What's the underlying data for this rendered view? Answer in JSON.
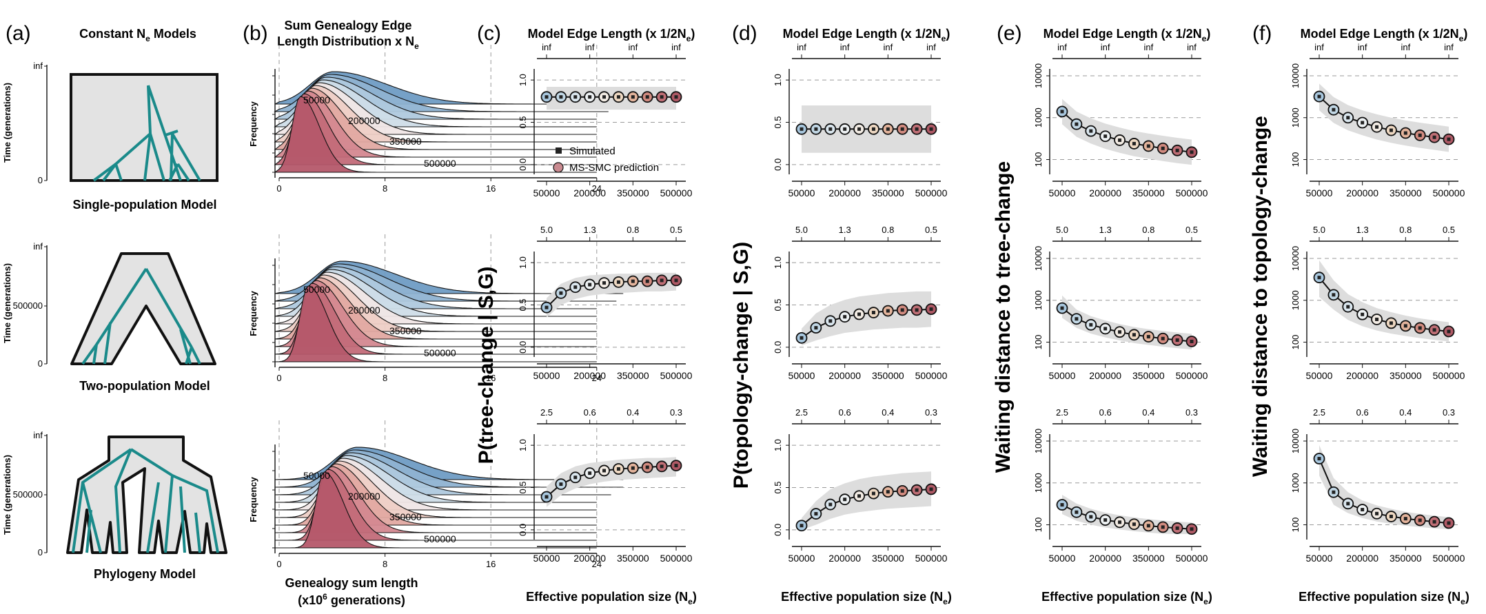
{
  "palette": {
    "teal": "#1a8a8a",
    "shade": "#e3e3e3",
    "band": "#dddddd",
    "blue": "#4a7fb0",
    "red": "#b4545f",
    "dashed": "#999999",
    "ramp": [
      "#a9c8df",
      "#c2d8e6",
      "#dbe7ef",
      "#eef2f4",
      "#f3ece4",
      "#eed8c2",
      "#e4b49c",
      "#d28b80",
      "#c06f76",
      "#b05a66"
    ]
  },
  "panel_labels": [
    "(a)",
    "(b)",
    "(c)",
    "(d)",
    "(e)",
    "(f)"
  ],
  "panel_a": {
    "title": "Constant N",
    "title_sub": "e",
    "title_suffix": " Models",
    "ylabel": "Time (generations)",
    "models": [
      {
        "name": "Single-population Model",
        "ticks": [
          "inf",
          "0"
        ]
      },
      {
        "name": "Two-population Model",
        "ticks": [
          "inf",
          "500000",
          "0"
        ]
      },
      {
        "name": "Phylogeny Model",
        "ticks": [
          "inf",
          "500000",
          "0"
        ]
      }
    ]
  },
  "panel_b": {
    "title_line1": "Sum Genealogy Edge",
    "title_line2": "Length Distribution x N",
    "title_sub": "e",
    "ylabel": "Frequency",
    "xlabel_line1": "Genealogy sum length",
    "xlabel_line2_pre": "(x10",
    "xlabel_sup": "6",
    "xlabel_line2_post": " generations)",
    "xticks": [
      "0",
      "8",
      "16",
      "24"
    ],
    "ridge_labels": [
      "50000",
      "200000",
      "350000",
      "500000"
    ]
  },
  "top_axis": {
    "title": "Model Edge Length (x 1/2N",
    "title_sub": "e",
    "title_close": ")",
    "rows": [
      [
        "inf",
        "inf",
        "inf",
        "inf"
      ],
      [
        "5.0",
        "1.3",
        "0.8",
        "0.5"
      ],
      [
        "2.5",
        "0.6",
        "0.4",
        "0.3"
      ]
    ]
  },
  "xlabel_bottom": "Effective population size (N",
  "xlabel_bottom_sub": "e",
  "xlabel_bottom_close": ")",
  "legend": {
    "simulated": "Simulated",
    "prediction": "MS-SMC prediction"
  },
  "chart_data": [
    {
      "panel": "c",
      "type": "scatter",
      "ylabel": "P(tree-change | S,G)",
      "scale": "linear",
      "yticks": [
        "0.0",
        "0.5",
        "1.0"
      ],
      "xticks": [
        "50000",
        "200000",
        "350000",
        "500000"
      ],
      "x": [
        50000,
        100000,
        150000,
        200000,
        250000,
        300000,
        350000,
        400000,
        450000,
        500000
      ],
      "rows": [
        {
          "y": [
            0.8,
            0.8,
            0.8,
            0.8,
            0.8,
            0.8,
            0.8,
            0.8,
            0.8,
            0.8
          ],
          "lo": [
            0.65,
            0.65,
            0.65,
            0.65,
            0.65,
            0.65,
            0.65,
            0.65,
            0.65,
            0.65
          ],
          "hi": [
            0.92,
            0.92,
            0.92,
            0.92,
            0.92,
            0.92,
            0.92,
            0.92,
            0.92,
            0.92
          ]
        },
        {
          "y": [
            0.47,
            0.64,
            0.71,
            0.74,
            0.76,
            0.77,
            0.78,
            0.78,
            0.79,
            0.79
          ],
          "lo": [
            0.35,
            0.5,
            0.57,
            0.61,
            0.63,
            0.64,
            0.65,
            0.66,
            0.66,
            0.67
          ],
          "hi": [
            0.58,
            0.75,
            0.82,
            0.85,
            0.86,
            0.87,
            0.87,
            0.88,
            0.88,
            0.88
          ]
        },
        {
          "y": [
            0.39,
            0.54,
            0.62,
            0.67,
            0.7,
            0.72,
            0.73,
            0.74,
            0.75,
            0.76
          ],
          "lo": [
            0.27,
            0.41,
            0.49,
            0.54,
            0.57,
            0.59,
            0.6,
            0.61,
            0.62,
            0.63
          ],
          "hi": [
            0.51,
            0.67,
            0.75,
            0.79,
            0.81,
            0.83,
            0.84,
            0.85,
            0.85,
            0.86
          ]
        }
      ]
    },
    {
      "panel": "d",
      "type": "scatter",
      "ylabel": "P(topology-change | S,G)",
      "scale": "linear",
      "yticks": [
        "0.0",
        "0.5",
        "1.0"
      ],
      "xticks": [
        "50000",
        "200000",
        "350000",
        "500000"
      ],
      "x": [
        50000,
        100000,
        150000,
        200000,
        250000,
        300000,
        350000,
        400000,
        450000,
        500000
      ],
      "rows": [
        {
          "y": [
            0.42,
            0.42,
            0.42,
            0.42,
            0.42,
            0.42,
            0.42,
            0.42,
            0.42,
            0.42
          ],
          "lo": [
            0.14,
            0.14,
            0.14,
            0.14,
            0.14,
            0.14,
            0.14,
            0.14,
            0.14,
            0.14
          ],
          "hi": [
            0.7,
            0.7,
            0.7,
            0.7,
            0.7,
            0.7,
            0.7,
            0.7,
            0.7,
            0.7
          ]
        },
        {
          "y": [
            0.11,
            0.23,
            0.31,
            0.36,
            0.39,
            0.41,
            0.43,
            0.44,
            0.44,
            0.45
          ],
          "lo": [
            0.02,
            0.08,
            0.13,
            0.17,
            0.19,
            0.21,
            0.22,
            0.23,
            0.23,
            0.24
          ],
          "hi": [
            0.22,
            0.4,
            0.5,
            0.56,
            0.6,
            0.62,
            0.64,
            0.65,
            0.66,
            0.66
          ]
        },
        {
          "y": [
            0.05,
            0.19,
            0.3,
            0.36,
            0.4,
            0.43,
            0.45,
            0.46,
            0.47,
            0.48
          ],
          "lo": [
            0.0,
            0.06,
            0.13,
            0.18,
            0.21,
            0.23,
            0.25,
            0.26,
            0.27,
            0.28
          ],
          "hi": [
            0.14,
            0.34,
            0.48,
            0.55,
            0.6,
            0.63,
            0.65,
            0.67,
            0.68,
            0.69
          ]
        }
      ]
    },
    {
      "panel": "e",
      "type": "scatter",
      "ylabel": "Waiting distance to tree-change",
      "scale": "log",
      "ylim": [
        60,
        10000
      ],
      "yticks": [
        "100",
        "1000",
        "10000"
      ],
      "ytick_values": [
        100,
        1000,
        10000
      ],
      "xticks": [
        "50000",
        "200000",
        "350000",
        "500000"
      ],
      "x": [
        50000,
        100000,
        150000,
        200000,
        250000,
        300000,
        350000,
        400000,
        450000,
        500000
      ],
      "rows": [
        {
          "y": [
            1400,
            700,
            480,
            360,
            290,
            240,
            210,
            185,
            165,
            150
          ],
          "lo": [
            700,
            350,
            240,
            180,
            145,
            120,
            105,
            92,
            82,
            75
          ],
          "hi": [
            2800,
            1400,
            960,
            720,
            580,
            480,
            420,
            370,
            330,
            300
          ]
        },
        {
          "y": [
            650,
            360,
            260,
            210,
            175,
            150,
            135,
            122,
            112,
            104
          ],
          "lo": [
            380,
            220,
            160,
            130,
            110,
            95,
            86,
            78,
            72,
            67
          ],
          "hi": [
            1300,
            600,
            420,
            330,
            270,
            230,
            205,
            185,
            170,
            158
          ]
        },
        {
          "y": [
            300,
            200,
            155,
            130,
            115,
            103,
            95,
            88,
            83,
            79
          ],
          "lo": [
            180,
            125,
            100,
            86,
            77,
            70,
            65,
            61,
            58,
            56
          ],
          "hi": [
            520,
            320,
            240,
            195,
            168,
            150,
            137,
            127,
            119,
            113
          ]
        }
      ]
    },
    {
      "panel": "f",
      "type": "scatter",
      "ylabel": "Waiting distance to topology-change",
      "scale": "log",
      "ylim": [
        60,
        10000
      ],
      "yticks": [
        "100",
        "1000",
        "10000"
      ],
      "ytick_values": [
        100,
        1000,
        10000
      ],
      "xticks": [
        "50000",
        "200000",
        "350000",
        "500000"
      ],
      "x": [
        50000,
        100000,
        150000,
        200000,
        250000,
        300000,
        350000,
        400000,
        450000,
        500000
      ],
      "rows": [
        {
          "y": [
            3200,
            1550,
            1000,
            760,
            600,
            500,
            430,
            380,
            340,
            305
          ],
          "lo": [
            1500,
            750,
            500,
            380,
            300,
            250,
            215,
            190,
            170,
            152
          ],
          "hi": [
            6500,
            3100,
            2000,
            1500,
            1200,
            1000,
            860,
            760,
            680,
            610
          ]
        },
        {
          "y": [
            3500,
            1350,
            700,
            460,
            350,
            285,
            245,
            218,
            196,
            180
          ],
          "lo": [
            1200,
            600,
            340,
            240,
            190,
            160,
            140,
            125,
            113,
            104
          ],
          "hi": [
            9000,
            3000,
            1400,
            900,
            650,
            520,
            430,
            370,
            330,
            300
          ]
        },
        {
          "y": [
            3800,
            600,
            320,
            230,
            185,
            158,
            140,
            128,
            118,
            110
          ],
          "lo": [
            1500,
            300,
            190,
            145,
            120,
            105,
            95,
            88,
            82,
            78
          ],
          "hi": [
            8000,
            1300,
            600,
            380,
            290,
            240,
            205,
            182,
            165,
            152
          ]
        }
      ]
    }
  ]
}
